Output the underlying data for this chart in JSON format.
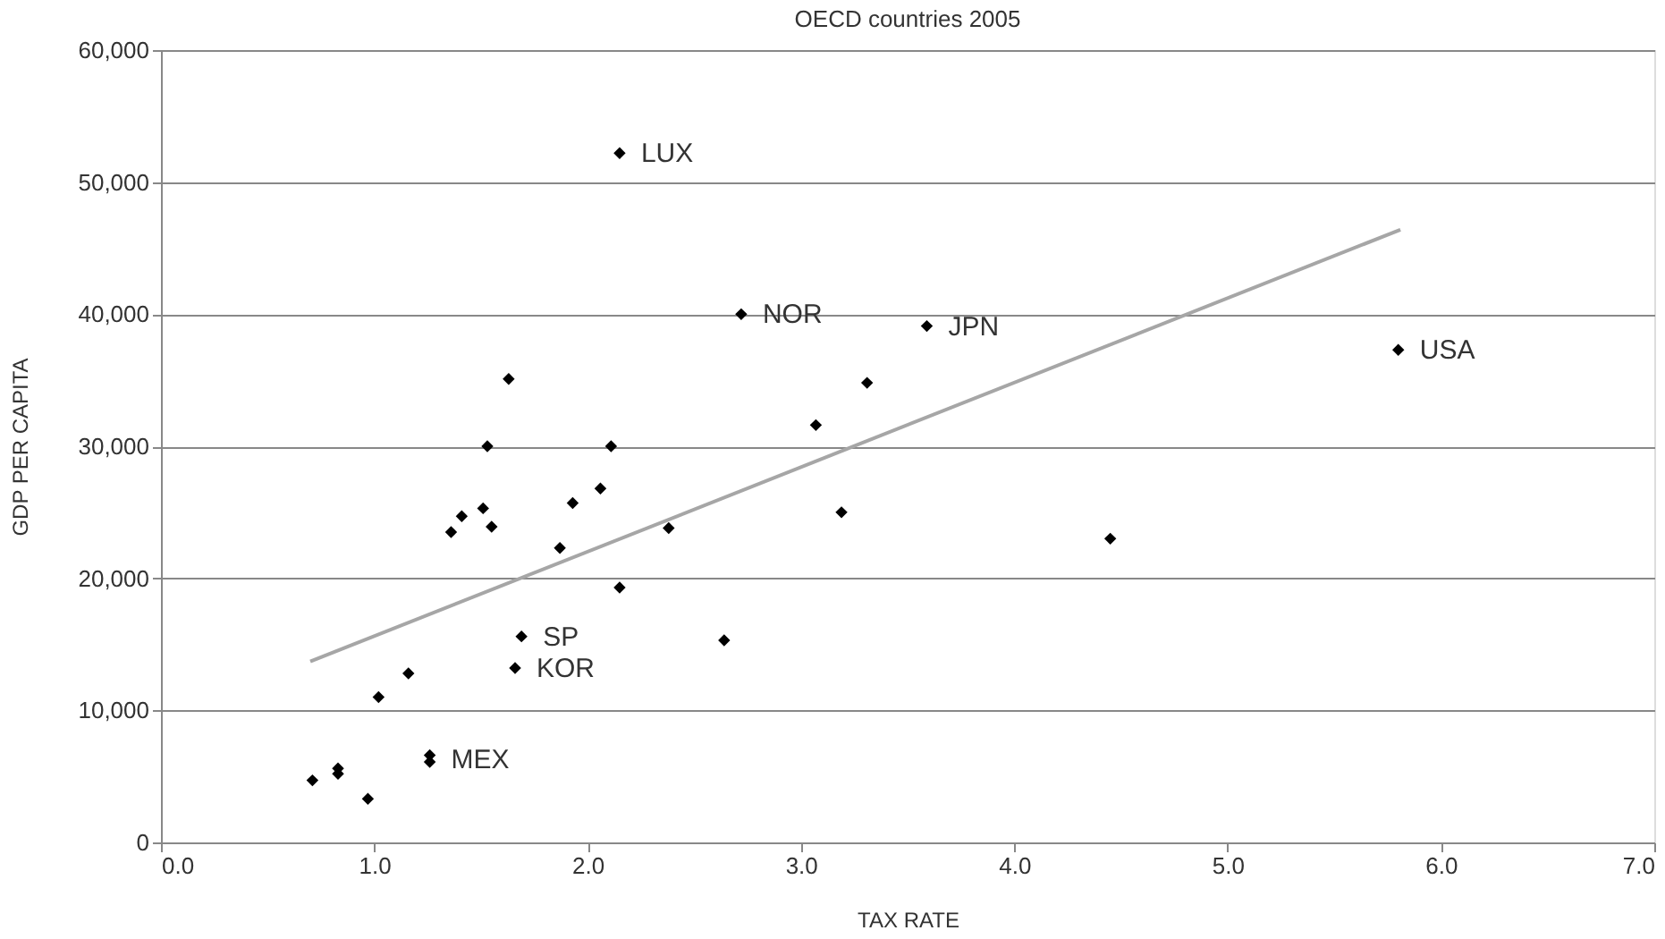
{
  "chart_data": {
    "type": "scatter",
    "title": "OECD countries 2005",
    "xlabel": "TAX RATE",
    "ylabel": "GDP PER CAPITA",
    "series": [
      {
        "type": "scatter",
        "color": "#000000",
        "marker": "diamond",
        "x": [
          2.15,
          2.72,
          3.59,
          5.8,
          1.63,
          3.31,
          3.07,
          1.53,
          2.11,
          2.06,
          1.93,
          1.51,
          1.41,
          1.55,
          1.36,
          2.38,
          1.87,
          3.19,
          4.45,
          2.15,
          1.69,
          2.64,
          1.66,
          1.16,
          1.02,
          1.26,
          1.26,
          0.83,
          0.83,
          0.71,
          0.97
        ],
        "values": [
          52200,
          40000,
          39100,
          37300,
          35100,
          34800,
          31600,
          30000,
          30000,
          26800,
          25700,
          25300,
          24700,
          23900,
          23500,
          23800,
          22300,
          25000,
          23000,
          19300,
          15600,
          15300,
          13200,
          12800,
          11000,
          6600,
          6100,
          5600,
          5200,
          4700,
          3300
        ]
      },
      {
        "type": "line",
        "color": "#a6a6a6",
        "marker": "none",
        "line_style": "solid",
        "x": [
          0.7,
          5.81
        ],
        "values": [
          13700,
          46400
        ]
      }
    ],
    "annotations": [
      {
        "text": "LUX",
        "x": 2.15,
        "y": 52200
      },
      {
        "text": "NOR",
        "x": 2.72,
        "y": 40000
      },
      {
        "text": "JPN",
        "x": 3.59,
        "y": 39100
      },
      {
        "text": "USA",
        "x": 5.8,
        "y": 37300
      },
      {
        "text": "SP",
        "x": 1.69,
        "y": 15600
      },
      {
        "text": "KOR",
        "x": 1.66,
        "y": 13200
      },
      {
        "text": "MEX",
        "x": 1.26,
        "y": 6300
      }
    ],
    "xlim": [
      0,
      7
    ],
    "ylim": [
      0,
      60000
    ],
    "xticks": [
      {
        "value": 0,
        "label": "0.0"
      },
      {
        "value": 1,
        "label": "1.0"
      },
      {
        "value": 2,
        "label": "2.0"
      },
      {
        "value": 3,
        "label": "3.0"
      },
      {
        "value": 4,
        "label": "4.0"
      },
      {
        "value": 5,
        "label": "5.0"
      },
      {
        "value": 6,
        "label": "6.0"
      },
      {
        "value": 7,
        "label": "7.0"
      }
    ],
    "yticks": [
      0,
      {
        "value": 10000,
        "label": "10,000"
      },
      {
        "value": 20000,
        "label": "20,000"
      },
      {
        "value": 30000,
        "label": "30,000"
      },
      {
        "value": 40000,
        "label": "40,000"
      },
      {
        "value": 50000,
        "label": "50,000"
      },
      {
        "value": 60000,
        "label": "60,000"
      }
    ],
    "grid": "y",
    "legend": false
  }
}
